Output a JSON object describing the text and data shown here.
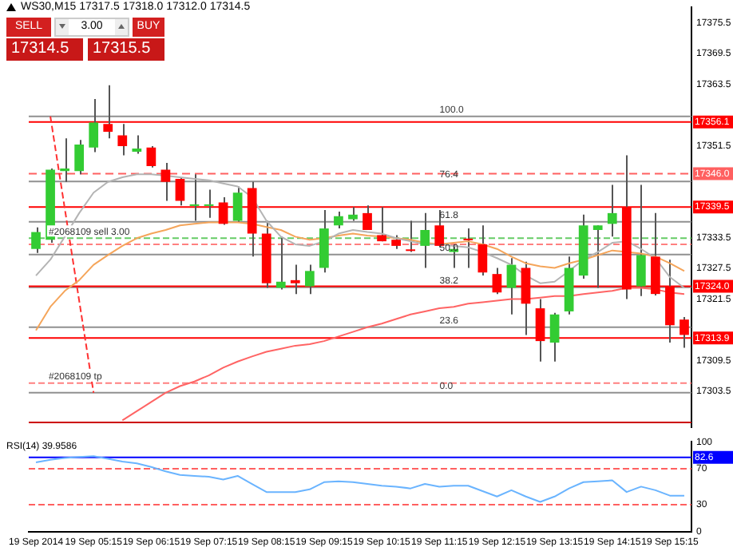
{
  "chart_data": [
    {
      "type": "candlestick",
      "title": "WS30,M15  17317.5 17318.0 17312.0 17314.5",
      "categories": [
        null,
        null,
        null,
        null,
        null,
        null,
        null,
        null,
        null,
        null,
        null,
        null,
        null,
        null,
        null,
        null,
        null,
        null,
        null,
        null,
        null,
        null,
        null,
        null,
        null,
        null,
        null,
        null,
        null,
        null,
        null,
        null,
        null,
        null,
        null,
        null,
        null,
        null,
        null,
        null,
        null,
        null,
        null,
        null,
        null,
        null
      ],
      "ohlc": [
        [
          17331.3,
          17335.5,
          17330.5,
          17334.6
        ],
        [
          17333.1,
          17347.0,
          17332.5,
          17346.8
        ],
        [
          17346.5,
          17352.9,
          17344.4,
          17347.0
        ],
        [
          17346.5,
          17352.6,
          17345.9,
          17351.7
        ],
        [
          17351.1,
          17360.6,
          17350.2,
          17356.0
        ],
        [
          17355.7,
          17363.3,
          17352.9,
          17354.2
        ],
        [
          17353.5,
          17355.7,
          17349.6,
          17351.4
        ],
        [
          17350.3,
          17353.5,
          17349.9,
          17350.9
        ],
        [
          17351.1,
          17351.4,
          17347.2,
          17347.5
        ],
        [
          17346.8,
          17348.1,
          17340.7,
          17344.4
        ],
        [
          17345.0,
          17345.3,
          17339.8,
          17340.7
        ],
        [
          17339.7,
          17345.9,
          17336.8,
          17339.9
        ],
        [
          17339.7,
          17342.9,
          17337.4,
          17339.9
        ],
        [
          17340.4,
          17341.4,
          17336.0,
          17336.2
        ],
        [
          17336.8,
          17343.5,
          17336.5,
          17342.3
        ],
        [
          17343.2,
          17344.4,
          17329.8,
          17334.3
        ],
        [
          17334.3,
          17336.8,
          17323.7,
          17324.6
        ],
        [
          17323.7,
          17333.7,
          17323.4,
          17324.9
        ],
        [
          17325.2,
          17328.2,
          17322.5,
          17324.6
        ],
        [
          17324.0,
          17328.2,
          17322.5,
          17327.0
        ],
        [
          17327.6,
          17338.9,
          17326.7,
          17335.3
        ],
        [
          17335.9,
          17338.6,
          17335.3,
          17337.7
        ],
        [
          17337.1,
          17339.5,
          17336.8,
          17338.0
        ],
        [
          17338.3,
          17339.8,
          17335.0,
          17335.0
        ],
        [
          17334.0,
          17339.5,
          17332.8,
          17332.8
        ],
        [
          17333.1,
          17334.0,
          17331.3,
          17331.9
        ],
        [
          17331.0,
          17336.8,
          17330.7,
          17330.9
        ],
        [
          17331.9,
          17338.3,
          17327.6,
          17335.0
        ],
        [
          17335.9,
          17338.9,
          17331.6,
          17331.9
        ],
        [
          17330.7,
          17332.2,
          17327.6,
          17331.3
        ],
        [
          17333.2,
          17335.3,
          17327.6,
          17333.0
        ],
        [
          17332.2,
          17335.9,
          17326.1,
          17326.7
        ],
        [
          17326.4,
          17327.6,
          17322.5,
          17322.8
        ],
        [
          17323.7,
          17329.5,
          17318.5,
          17328.2
        ],
        [
          17327.6,
          17328.8,
          17314.5,
          17320.6
        ],
        [
          17319.7,
          17321.5,
          17309.3,
          17313.3
        ],
        [
          17313.0,
          17318.8,
          17309.3,
          17318.5
        ],
        [
          17319.1,
          17329.8,
          17318.5,
          17327.6
        ],
        [
          17326.1,
          17338.0,
          17325.5,
          17335.9
        ],
        [
          17335.0,
          17335.9,
          17323.7,
          17335.9
        ],
        [
          17336.2,
          17343.8,
          17333.7,
          17338.3
        ],
        [
          17339.5,
          17349.6,
          17321.5,
          17323.4
        ],
        [
          17324.0,
          17343.8,
          17322.1,
          17330.1
        ],
        [
          17329.8,
          17338.3,
          17322.2,
          17322.5
        ],
        [
          17324.0,
          17329.2,
          17313.0,
          17316.4
        ],
        [
          17317.5,
          17318.0,
          17312.0,
          17314.5
        ]
      ],
      "series": [
        {
          "type": "line",
          "color": "#b4b4b4",
          "values": [
            17326.1,
            17329.2,
            17333.7,
            17338.3,
            17342.3,
            17344.4,
            17345.3,
            17345.9,
            17345.9,
            17345.6,
            17345.3,
            17345.0,
            17344.7,
            17344.1,
            17343.5,
            17341.4,
            17336.8,
            17333.7,
            17332.2,
            17331.9,
            17332.8,
            17334.3,
            17335.0,
            17334.6,
            17334.3,
            17333.4,
            17332.8,
            17332.2,
            17332.2,
            17331.9,
            17331.6,
            17330.7,
            17329.5,
            17328.2,
            17326.1,
            17324.6,
            17324.9,
            17327.0,
            17329.2,
            17330.7,
            17332.5,
            17332.8,
            17331.3,
            17329.5,
            17325.8,
            17323.7
          ]
        },
        {
          "type": "line",
          "color": "#f5a55a",
          "values": [
            17315.4,
            17320.0,
            17323.1,
            17325.2,
            17328.2,
            17330.1,
            17331.9,
            17333.4,
            17334.3,
            17335.0,
            17335.9,
            17336.2,
            17336.5,
            17336.5,
            17336.5,
            17336.2,
            17335.6,
            17335.0,
            17333.7,
            17333.1,
            17333.4,
            17333.9,
            17334.3,
            17333.9,
            17333.7,
            17333.4,
            17333.1,
            17332.5,
            17332.2,
            17332.5,
            17332.8,
            17332.2,
            17331.3,
            17329.8,
            17328.5,
            17327.9,
            17327.6,
            17328.5,
            17329.2,
            17330.1,
            17331.0,
            17330.7,
            17330.4,
            17329.8,
            17328.5,
            17327.0
          ]
        },
        {
          "type": "line",
          "color": "#ff6464",
          "values": [
            null,
            null,
            null,
            null,
            null,
            null,
            17297.8,
            17299.6,
            17301.4,
            17303.2,
            17304.5,
            17305.4,
            17306.6,
            17308.1,
            17309.3,
            17310.3,
            17311.2,
            17311.8,
            17312.4,
            17312.7,
            17313.3,
            17314.2,
            17315.1,
            17316.0,
            17316.7,
            17317.6,
            17318.5,
            17319.1,
            17319.7,
            17320.0,
            17320.6,
            17320.9,
            17321.2,
            17321.5,
            17321.5,
            17321.8,
            17322.1,
            17322.1,
            17322.5,
            17322.8,
            17323.1,
            17323.7,
            17323.7,
            17323.4,
            17322.8,
            17322.5
          ]
        },
        {
          "type": "line",
          "color": "#ff3030",
          "line_style": "dotted",
          "values": [
            null,
            17357.2,
            null,
            null,
            17303.2,
            null,
            null,
            null,
            null,
            null,
            null,
            null,
            null,
            null,
            null,
            null,
            null,
            null,
            null,
            null,
            null,
            null,
            null,
            null,
            null,
            null,
            null,
            null,
            null,
            null,
            null,
            null,
            null,
            null,
            null,
            null,
            null,
            null,
            null,
            null,
            null,
            null,
            null,
            null,
            null,
            null
          ]
        }
      ],
      "ylim": [
        17296.5,
        17378.5
      ],
      "yticks": [
        17375.5,
        17369.5,
        17363.5,
        17351.5,
        17333.5,
        17327.5,
        17321.5,
        17309.5,
        17303.5
      ],
      "tick_labels": "y",
      "ref_lines": [
        {
          "axis": "y",
          "value": 17357.2,
          "color": "#909090"
        },
        {
          "axis": "y",
          "value": 17344.5,
          "color": "#909090"
        },
        {
          "axis": "y",
          "value": 17336.6,
          "color": "#909090"
        },
        {
          "axis": "y",
          "value": 17330.2,
          "color": "#909090"
        },
        {
          "axis": "y",
          "value": 17323.8,
          "color": "#909090"
        },
        {
          "axis": "y",
          "value": 17316.0,
          "color": "#909090"
        },
        {
          "axis": "y",
          "value": 17303.2,
          "color": "#909090"
        },
        {
          "axis": "y",
          "value": 17356.1,
          "label": "17356.1",
          "color": "#ff0000",
          "line_style": "solid"
        },
        {
          "axis": "y",
          "value": 17346.0,
          "label": "17346.0",
          "color": "#ff6060",
          "line_style": "dashed"
        },
        {
          "axis": "y",
          "value": 17339.5,
          "label": "17339.5",
          "color": "#ff0000",
          "line_style": "solid"
        },
        {
          "axis": "y",
          "value": 17324.0,
          "label": "17324.0",
          "color": "#ff0000",
          "line_style": "solid"
        },
        {
          "axis": "y",
          "value": 17313.9,
          "label": "17313.9",
          "color": "#ff0000",
          "line_style": "solid"
        },
        {
          "axis": "y",
          "value": 17297.4,
          "color": "#cc0000",
          "line_style": "solid"
        },
        {
          "axis": "y",
          "value": 17333.4,
          "label": "#2068109 sell 3.00",
          "color": "#66cc66",
          "line_style": "dotted"
        },
        {
          "axis": "y",
          "value": 17332.2,
          "color": "#ff8080",
          "line_style": "dotted"
        },
        {
          "axis": "y",
          "value": 17305.1,
          "label": "#2068109 tp",
          "color": "#ff8080",
          "line_style": "dotted"
        }
      ],
      "annotations": [
        "SELL",
        "3.00",
        "BUY",
        "17314.5",
        "17315.5",
        {
          "text": "100.0",
          "y": 17357.2
        },
        {
          "text": "76.4",
          "y": 17344.5
        },
        {
          "text": "61.8",
          "y": 17336.6
        },
        {
          "text": "50.0",
          "y": 17330.2
        },
        {
          "text": "38.2",
          "y": 17323.8
        },
        {
          "text": "23.6",
          "y": 17316.0
        },
        {
          "text": "0.0",
          "y": 17303.2
        }
      ]
    },
    {
      "type": "line",
      "title": "RSI(14) 39.9586",
      "categories": [
        "19 Sep 2014",
        null,
        null,
        null,
        "19 Sep 05:15",
        null,
        null,
        null,
        "19 Sep 06:15",
        null,
        null,
        null,
        "19 Sep 07:15",
        null,
        null,
        null,
        "19 Sep 08:15",
        null,
        null,
        null,
        "19 Sep 09:15",
        null,
        null,
        null,
        "19 Sep 10:15",
        null,
        null,
        null,
        "19 Sep 11:15",
        null,
        null,
        null,
        "19 Sep 12:15",
        null,
        null,
        null,
        "19 Sep 13:15",
        null,
        null,
        null,
        "19 Sep 14:15",
        null,
        null,
        null,
        "19 Sep 15:15",
        null
      ],
      "series": [
        {
          "color": "#6ab4ff",
          "values": [
            77,
            80,
            82,
            83,
            84,
            81,
            78,
            76,
            72,
            67,
            63,
            62,
            61,
            58,
            62,
            53,
            44,
            44,
            44,
            47,
            55,
            56,
            55,
            53,
            51,
            50,
            48,
            53,
            50,
            51,
            51,
            45,
            39,
            46,
            39,
            33,
            39,
            48,
            55,
            56,
            57,
            44,
            50,
            46,
            40,
            40
          ]
        }
      ],
      "ylim": [
        0,
        100
      ],
      "yticks": [
        0,
        30,
        70,
        100
      ],
      "ref_lines": [
        {
          "axis": "y",
          "value": 70,
          "color": "#ff6060",
          "line_style": "dotted"
        },
        {
          "axis": "y",
          "value": 30,
          "color": "#ff6060",
          "line_style": "dotted"
        },
        {
          "axis": "y",
          "value": 82.6,
          "label": "82.6",
          "color": "#0000ff",
          "line_style": "solid"
        }
      ]
    }
  ]
}
